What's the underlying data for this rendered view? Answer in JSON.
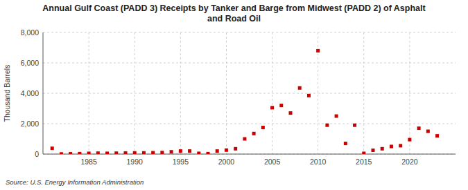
{
  "chart_data": {
    "type": "scatter",
    "title": "Annual Gulf Coast (PADD 3) Receipts by Tanker and Barge from Midwest (PADD 2) of Asphalt\nand Road Oil",
    "ylabel": "Thousand Barrels",
    "annotation": "Source: U.S. Energy Information Administration",
    "x": [
      1981,
      1982,
      1983,
      1984,
      1985,
      1986,
      1987,
      1988,
      1989,
      1990,
      1991,
      1992,
      1993,
      1994,
      1995,
      1996,
      1997,
      1998,
      1999,
      2000,
      2001,
      2002,
      2003,
      2004,
      2005,
      2006,
      2007,
      2008,
      2009,
      2010,
      2011,
      2012,
      2013,
      2014,
      2015,
      2016,
      2017,
      2018,
      2019,
      2020,
      2021,
      2022,
      2023
    ],
    "values": [
      380,
      10,
      20,
      30,
      50,
      60,
      50,
      60,
      70,
      80,
      80,
      90,
      100,
      150,
      200,
      200,
      50,
      30,
      200,
      260,
      350,
      1000,
      1350,
      1750,
      3050,
      3200,
      2700,
      4350,
      3850,
      6800,
      1900,
      2500,
      700,
      1900,
      50,
      250,
      350,
      500,
      550,
      950,
      1700,
      1500,
      1200
    ],
    "color": "#cc0000",
    "marker": "square",
    "grid": true,
    "xlim": [
      1980,
      2025
    ],
    "xticks": [
      1985,
      1990,
      1995,
      2000,
      2005,
      2010,
      2015,
      2020
    ],
    "ylim": [
      0,
      8000
    ],
    "yticks": [
      0,
      {
        "value": 2000,
        "label": "2,000"
      },
      {
        "value": 4000,
        "label": "4,000"
      },
      {
        "value": 6000,
        "label": "6,000"
      },
      {
        "value": 8000,
        "label": "8,000"
      }
    ]
  }
}
